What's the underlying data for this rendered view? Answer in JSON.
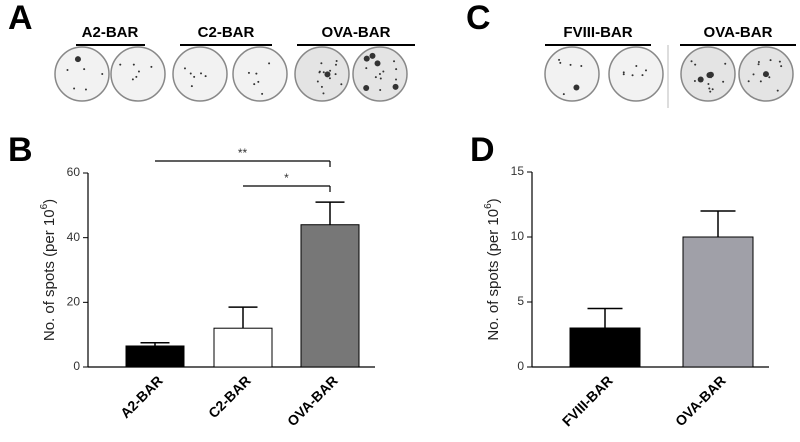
{
  "panel_labels": [
    "A",
    "B",
    "C",
    "D"
  ],
  "well_images": [
    {
      "groups": [
        "A2-BAR",
        "C2-BAR",
        "OVA-BAR"
      ]
    },
    {
      "groups": [
        "FVIII-BAR",
        "OVA-BAR"
      ]
    }
  ],
  "chart_data": [
    {
      "type": "bar",
      "y_label": "No. of spots (per 10",
      "y_label_sup": "6",
      "y_label_end": ")",
      "categories": [
        "A2-BAR",
        "C2-BAR",
        "OVA-BAR"
      ],
      "values": [
        6.5,
        12,
        44
      ],
      "errors": [
        1,
        6.5,
        7
      ],
      "colors": [
        "#000000",
        "#ffffff",
        "#777777"
      ],
      "ylim": [
        0,
        60
      ],
      "yticks": [
        0,
        20,
        40,
        60
      ],
      "annotations": [
        {
          "text": "**",
          "between": [
            "A2-BAR",
            "OVA-BAR"
          ]
        },
        {
          "text": "*",
          "between": [
            "C2-BAR",
            "OVA-BAR"
          ]
        }
      ]
    },
    {
      "type": "bar",
      "y_label": "No. of spots (per 10",
      "y_label_sup": "6",
      "y_label_end": ")",
      "categories": [
        "FVIII-BAR",
        "OVA-BAR"
      ],
      "values": [
        3,
        10
      ],
      "errors": [
        1.5,
        2
      ],
      "colors": [
        "#000000",
        "#a0a0a8"
      ],
      "ylim": [
        0,
        15
      ],
      "yticks": [
        0,
        5,
        10,
        15
      ]
    }
  ]
}
